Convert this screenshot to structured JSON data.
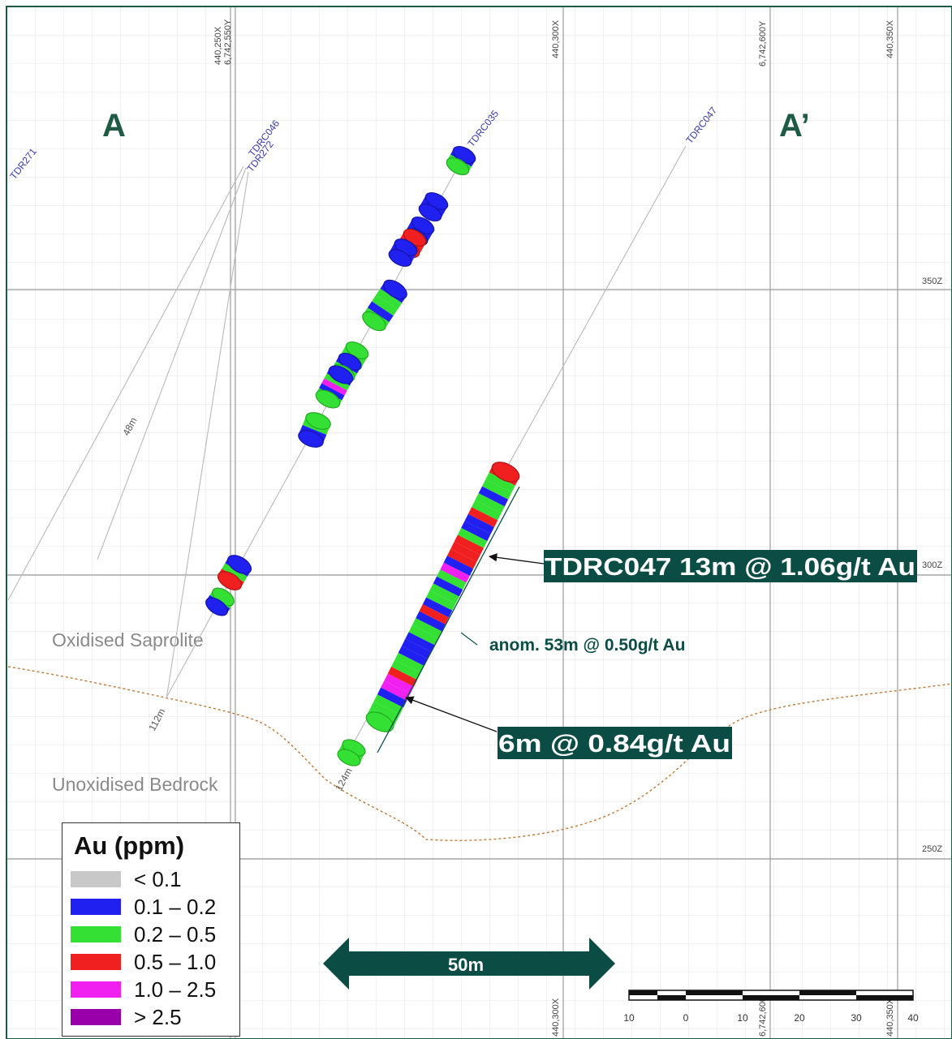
{
  "section": {
    "label_a": "A",
    "label_a_prime": "A’",
    "grid_labels_x": [
      "440,250X",
      "6,742,550Y",
      "440,300X",
      "6,742,600Y",
      "440,350X"
    ],
    "grid_labels_x_bottom": [
      "440,300X",
      "6,742,600Y",
      "440,350X"
    ],
    "grid_labels_z": [
      "350Z",
      "300Z",
      "250Z"
    ]
  },
  "holes": {
    "tdr271": "TDR271",
    "tdrc046": "TDRC046",
    "tdr272": "TDR272",
    "tdrc035": "TDRC035",
    "tdrc047": "TDRC047"
  },
  "depths": {
    "d48": "48m",
    "d112": "112m",
    "d124": "124m"
  },
  "zones": {
    "oxidised": "Oxidised Saprolite",
    "unoxidised": "Unoxidised Bedrock"
  },
  "annotations": {
    "intercept_main": "TDRC047 13m @ 1.06g/t Au",
    "intercept_anom": "anom. 53m @ 0.50g/t Au",
    "intercept_lower": "6m @ 0.84g/t Au"
  },
  "scale": {
    "arrow_label": "50m",
    "bar_ticks": [
      "10",
      "0",
      "10",
      "20",
      "30",
      "40"
    ]
  },
  "legend": {
    "title": "Au (ppm)",
    "items": [
      {
        "label": "< 0.1",
        "color": "#c8c8c8"
      },
      {
        "label": "0.1 – 0.2",
        "color": "#2020f0"
      },
      {
        "label": "0.2 – 0.5",
        "color": "#33e033"
      },
      {
        "label": "0.5 – 1.0",
        "color": "#f02020"
      },
      {
        "label": "1.0 – 2.5",
        "color": "#f020f0"
      },
      {
        "label": "> 2.5",
        "color": "#9900aa"
      }
    ]
  },
  "colors": {
    "frame": "#1f5a45",
    "accent": "#0b4d45",
    "grid_major": "#9a9a9a",
    "grid_minor": "#e3e3e3",
    "hole_label": "#3a3aa8",
    "weathering_line": "#c07a3a"
  }
}
